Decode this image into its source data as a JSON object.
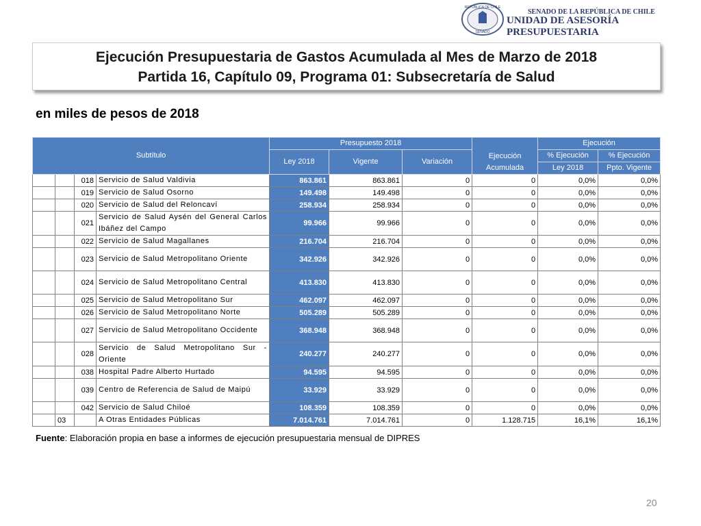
{
  "header": {
    "seal_top": "REPÚBLICA DE CHILE",
    "seal_bottom": "SENADO",
    "org_line1": "SENADO DE LA REPÚBLICA DE CHILE",
    "org_line2": "UNIDAD DE ASESORÍA PRESUPUESTARIA"
  },
  "title": {
    "line1": "Ejecución Presupuestaria de Gastos Acumulada al Mes de Marzo de 2018",
    "line2": "Partida 16, Capítulo 09, Programa 01: Subsecretaría de Salud"
  },
  "subtitle": "en miles de pesos de 2018",
  "table": {
    "header": {
      "subtitulo": "Subtítulo",
      "presupuesto": "Presupuesto 2018",
      "ley": "Ley 2018",
      "vigente": "Vigente",
      "variacion": "Variación",
      "ejec_acum": [
        "Ejecución",
        "Acumulada"
      ],
      "ejecucion": "Ejecución",
      "pct_ley": [
        "% Ejecución",
        "Ley 2018"
      ],
      "pct_vig": [
        "% Ejecución",
        "Ppto. Vigente"
      ]
    },
    "rows": [
      {
        "code": "018",
        "name": "Servicio de Salud Valdivia",
        "ley": "863.861",
        "vigente": "863.861",
        "variacion": "0",
        "ejecucion": "0",
        "pct_ley": "0,0%",
        "pct_vig": "0,0%"
      },
      {
        "code": "019",
        "name": "Servicio de Salud Osorno",
        "ley": "149.498",
        "vigente": "149.498",
        "variacion": "0",
        "ejecucion": "0",
        "pct_ley": "0,0%",
        "pct_vig": "0,0%"
      },
      {
        "code": "020",
        "name": "Servicio de Salud del Reloncaví",
        "ley": "258.934",
        "vigente": "258.934",
        "variacion": "0",
        "ejecucion": "0",
        "pct_ley": "0,0%",
        "pct_vig": "0,0%"
      },
      {
        "code": "021",
        "name": "Servicio de Salud Aysén del General Carlos Ibáñez del Campo",
        "ley": "99.966",
        "vigente": "99.966",
        "variacion": "0",
        "ejecucion": "0",
        "pct_ley": "0,0%",
        "pct_vig": "0,0%"
      },
      {
        "code": "022",
        "name": "Servicio de Salud Magallanes",
        "ley": "216.704",
        "vigente": "216.704",
        "variacion": "0",
        "ejecucion": "0",
        "pct_ley": "0,0%",
        "pct_vig": "0,0%"
      },
      {
        "code": "023",
        "name": "Servicio de Salud Metropolitano Oriente",
        "ley": "342.926",
        "vigente": "342.926",
        "variacion": "0",
        "ejecucion": "0",
        "pct_ley": "0,0%",
        "pct_vig": "0,0%"
      },
      {
        "code": "024",
        "name": "Servicio de Salud Metropolitano Central",
        "ley": "413.830",
        "vigente": "413.830",
        "variacion": "0",
        "ejecucion": "0",
        "pct_ley": "0,0%",
        "pct_vig": "0,0%"
      },
      {
        "code": "025",
        "name": "Servicio de Salud Metropolitano Sur",
        "ley": "462.097",
        "vigente": "462.097",
        "variacion": "0",
        "ejecucion": "0",
        "pct_ley": "0,0%",
        "pct_vig": "0,0%"
      },
      {
        "code": "026",
        "name": "Servicio de Salud Metropolitano Norte",
        "ley": "505.289",
        "vigente": "505.289",
        "variacion": "0",
        "ejecucion": "0",
        "pct_ley": "0,0%",
        "pct_vig": "0,0%"
      },
      {
        "code": "027",
        "name": "Servicio de Salud Metropolitano Occidente",
        "ley": "368.948",
        "vigente": "368.948",
        "variacion": "0",
        "ejecucion": "0",
        "pct_ley": "0,0%",
        "pct_vig": "0,0%"
      },
      {
        "code": "028",
        "name": "Servicio de Salud Metropolitano Sur - Oriente",
        "ley": "240.277",
        "vigente": "240.277",
        "variacion": "0",
        "ejecucion": "0",
        "pct_ley": "0,0%",
        "pct_vig": "0,0%"
      },
      {
        "code": "038",
        "name": "Hospital Padre Alberto Hurtado",
        "ley": "94.595",
        "vigente": "94.595",
        "variacion": "0",
        "ejecucion": "0",
        "pct_ley": "0,0%",
        "pct_vig": "0,0%"
      },
      {
        "code": "039",
        "name": "Centro de Referencia de Salud de Maipú",
        "ley": "33.929",
        "vigente": "33.929",
        "variacion": "0",
        "ejecucion": "0",
        "pct_ley": "0,0%",
        "pct_vig": "0,0%"
      },
      {
        "code": "042",
        "name": "Servicio de Salud Chiloé",
        "ley": "108.359",
        "vigente": "108.359",
        "variacion": "0",
        "ejecucion": "0",
        "pct_ley": "0,0%",
        "pct_vig": "0,0%"
      },
      {
        "item": "03",
        "name": "A Otras Entidades Públicas",
        "ley": "7.014.761",
        "vigente": "7.014.761",
        "variacion": "0",
        "ejecucion": "1.128.715",
        "pct_ley": "16,1%",
        "pct_vig": "16,1%"
      }
    ]
  },
  "source": {
    "label": "Fuente",
    "text": ": Elaboración propia en base  a informes de ejecución presupuestaria mensual de DIPRES"
  },
  "page_number": "20"
}
